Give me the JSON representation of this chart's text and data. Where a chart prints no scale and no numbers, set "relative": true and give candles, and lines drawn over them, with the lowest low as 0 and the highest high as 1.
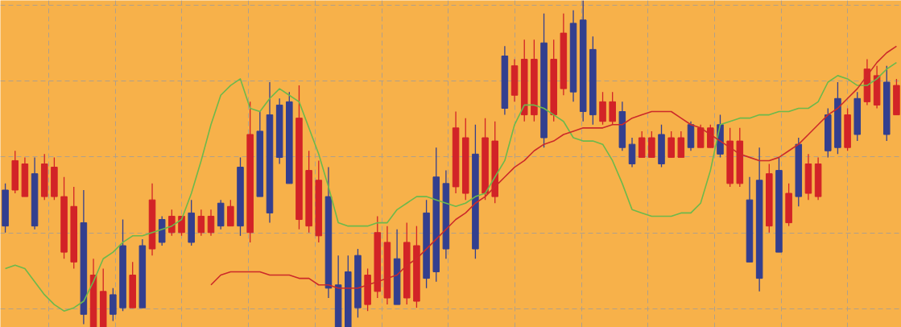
{
  "chart_data": {
    "type": "candlestick",
    "relative": true,
    "grid": true,
    "categories": [
      null,
      null,
      null,
      null,
      null,
      null,
      null,
      null,
      null,
      null,
      null,
      null,
      null,
      null,
      null,
      null,
      null,
      null,
      null,
      null,
      null,
      null,
      null,
      null,
      null,
      null,
      null,
      null,
      null,
      null,
      null,
      null,
      null,
      null,
      null,
      null,
      null,
      null,
      null,
      null,
      null,
      null,
      null,
      null,
      null,
      null,
      null,
      null,
      null,
      null,
      null,
      null,
      null,
      null,
      null,
      null,
      null,
      null,
      null,
      null,
      null,
      null,
      null,
      null,
      null,
      null,
      null,
      null,
      null,
      null,
      null,
      null,
      null,
      null,
      null,
      null,
      null,
      null,
      null,
      null,
      null,
      null,
      null,
      null,
      null,
      null,
      null,
      null,
      null,
      null,
      null,
      null
    ],
    "ohlc": [
      [
        0.31,
        0.44,
        0.29,
        0.42
      ],
      [
        0.51,
        0.54,
        0.41,
        0.42
      ],
      [
        0.5,
        0.52,
        0.4,
        0.4
      ],
      [
        0.31,
        0.52,
        0.3,
        0.47
      ],
      [
        0.5,
        0.53,
        0.39,
        0.4
      ],
      [
        0.49,
        0.52,
        0.39,
        0.4
      ],
      [
        0.4,
        0.46,
        0.21,
        0.23
      ],
      [
        0.37,
        0.43,
        0.18,
        0.2
      ],
      [
        0.04,
        0.42,
        0.01,
        0.32
      ],
      [
        0.16,
        0.21,
        0,
        0
      ],
      [
        0.11,
        0.18,
        0,
        0
      ],
      [
        0.04,
        0.12,
        0.02,
        0.1
      ],
      [
        0.06,
        0.33,
        0.05,
        0.25
      ],
      [
        0.16,
        0.2,
        0.06,
        0.06
      ],
      [
        0.06,
        0.27,
        0.06,
        0.25
      ],
      [
        0.39,
        0.44,
        0.22,
        0.24
      ],
      [
        0.26,
        0.34,
        0.25,
        0.33
      ],
      [
        0.34,
        0.36,
        0.28,
        0.29
      ],
      [
        0.34,
        0.34,
        0.28,
        0.29
      ],
      [
        0.26,
        0.39,
        0.25,
        0.35
      ],
      [
        0.34,
        0.36,
        0.28,
        0.29
      ],
      [
        0.34,
        0.36,
        0.28,
        0.29
      ],
      [
        0.31,
        0.39,
        0.3,
        0.38
      ],
      [
        0.37,
        0.39,
        0.31,
        0.31
      ],
      [
        0.31,
        0.52,
        0.28,
        0.49
      ],
      [
        0.59,
        0.69,
        0.26,
        0.29
      ],
      [
        0.4,
        0.66,
        0.4,
        0.6
      ],
      [
        0.35,
        0.75,
        0.32,
        0.65
      ],
      [
        0.52,
        0.7,
        0.5,
        0.68
      ],
      [
        0.44,
        0.72,
        0.44,
        0.69
      ],
      [
        0.64,
        0.74,
        0.3,
        0.33
      ],
      [
        0.48,
        0.54,
        0.29,
        0.31
      ],
      [
        0.45,
        0.51,
        0.26,
        0.28
      ],
      [
        0.12,
        0.49,
        0.09,
        0.4
      ],
      [
        0,
        0.22,
        0,
        0.13
      ],
      [
        0,
        0.22,
        0,
        0.17
      ],
      [
        0.06,
        0.24,
        0.03,
        0.22
      ],
      [
        0.16,
        0.18,
        0.05,
        0.07
      ],
      [
        0.29,
        0.34,
        0.09,
        0.11
      ],
      [
        0.26,
        0.31,
        0.07,
        0.09
      ],
      [
        0.07,
        0.3,
        0.07,
        0.21
      ],
      [
        0.26,
        0.32,
        0.07,
        0.09
      ],
      [
        0.25,
        0.31,
        0.06,
        0.08
      ],
      [
        0.15,
        0.39,
        0.12,
        0.35
      ],
      [
        0.17,
        0.55,
        0.14,
        0.46
      ],
      [
        0.24,
        0.48,
        0.21,
        0.44
      ],
      [
        0.61,
        0.66,
        0.41,
        0.43
      ],
      [
        0.58,
        0.64,
        0.39,
        0.41
      ],
      [
        0.24,
        0.62,
        0.21,
        0.53
      ],
      [
        0.58,
        0.64,
        0.39,
        0.41
      ],
      [
        0.57,
        0.63,
        0.38,
        0.4
      ],
      [
        0.67,
        0.86,
        0.65,
        0.83
      ],
      [
        0.8,
        0.82,
        0.69,
        0.71
      ],
      [
        0.82,
        0.88,
        0.63,
        0.65
      ],
      [
        0.82,
        0.88,
        0.63,
        0.65
      ],
      [
        0.58,
        0.96,
        0.55,
        0.87
      ],
      [
        0.82,
        0.88,
        0.63,
        0.65
      ],
      [
        0.9,
        0.96,
        0.71,
        0.73
      ],
      [
        0.72,
        0.97,
        0.69,
        0.93
      ],
      [
        0.66,
        1.0,
        0.63,
        0.94
      ],
      [
        0.65,
        0.89,
        0.62,
        0.85
      ],
      [
        0.69,
        0.72,
        0.62,
        0.63
      ],
      [
        0.69,
        0.72,
        0.62,
        0.63
      ],
      [
        0.55,
        0.69,
        0.54,
        0.66
      ],
      [
        0.5,
        0.58,
        0.49,
        0.56
      ],
      [
        0.58,
        0.6,
        0.52,
        0.52
      ],
      [
        0.58,
        0.6,
        0.52,
        0.52
      ],
      [
        0.5,
        0.62,
        0.49,
        0.59
      ],
      [
        0.58,
        0.6,
        0.52,
        0.52
      ],
      [
        0.58,
        0.6,
        0.52,
        0.52
      ],
      [
        0.55,
        0.63,
        0.54,
        0.62
      ],
      [
        0.61,
        0.62,
        0.55,
        0.55
      ],
      [
        0.61,
        0.62,
        0.55,
        0.55
      ],
      [
        0.53,
        0.65,
        0.52,
        0.62
      ],
      [
        0.57,
        0.61,
        0.43,
        0.44
      ],
      [
        0.57,
        0.61,
        0.43,
        0.44
      ],
      [
        0.2,
        0.46,
        0.2,
        0.39
      ],
      [
        0.15,
        0.55,
        0.11,
        0.45
      ],
      [
        0.47,
        0.5,
        0.29,
        0.31
      ],
      [
        0.23,
        0.52,
        0.23,
        0.48
      ],
      [
        0.41,
        0.44,
        0.31,
        0.32
      ],
      [
        0.4,
        0.58,
        0.37,
        0.56
      ],
      [
        0.5,
        0.53,
        0.39,
        0.41
      ],
      [
        0.5,
        0.52,
        0.39,
        0.4
      ],
      [
        0.54,
        0.67,
        0.52,
        0.65
      ],
      [
        0.55,
        0.75,
        0.53,
        0.7
      ],
      [
        0.65,
        0.67,
        0.54,
        0.55
      ],
      [
        0.59,
        0.72,
        0.57,
        0.7
      ],
      [
        0.79,
        0.82,
        0.68,
        0.69
      ],
      [
        0.77,
        0.8,
        0.67,
        0.68
      ],
      [
        0.59,
        0.8,
        0.57,
        0.75
      ],
      [
        0.74,
        0.76,
        0.65,
        0.65
      ]
    ],
    "colors": [
      "#333f8f",
      "#d22327",
      "#d22327",
      "#333f8f",
      "#d22327",
      "#d22327",
      "#d22327",
      "#d22327",
      "#333f8f",
      "#d22327",
      "#d22327",
      "#333f8f",
      "#333f8f",
      "#d22327",
      "#333f8f",
      "#d22327",
      "#333f8f",
      "#d22327",
      "#d22327",
      "#333f8f",
      "#d22327",
      "#d22327",
      "#333f8f",
      "#d22327",
      "#333f8f",
      "#d22327",
      "#333f8f",
      "#333f8f",
      "#333f8f",
      "#333f8f",
      "#d22327",
      "#d22327",
      "#d22327",
      "#333f8f",
      "#333f8f",
      "#333f8f",
      "#333f8f",
      "#d22327",
      "#d22327",
      "#d22327",
      "#333f8f",
      "#d22327",
      "#d22327",
      "#333f8f",
      "#333f8f",
      "#333f8f",
      "#d22327",
      "#d22327",
      "#333f8f",
      "#d22327",
      "#d22327",
      "#333f8f",
      "#d22327",
      "#d22327",
      "#d22327",
      "#333f8f",
      "#d22327",
      "#d22327",
      "#333f8f",
      "#333f8f",
      "#333f8f",
      "#d22327",
      "#d22327",
      "#333f8f",
      "#333f8f",
      "#d22327",
      "#d22327",
      "#333f8f",
      "#d22327",
      "#d22327",
      "#333f8f",
      "#d22327",
      "#d22327",
      "#333f8f",
      "#d22327",
      "#d22327",
      "#333f8f",
      "#333f8f",
      "#d22327",
      "#333f8f",
      "#d22327",
      "#333f8f",
      "#d22327",
      "#d22327",
      "#333f8f",
      "#333f8f",
      "#d22327",
      "#333f8f",
      "#d22327",
      "#d22327",
      "#333f8f",
      "#d22327"
    ],
    "series": [
      {
        "type": "line",
        "color": "#6cb94c",
        "values": [
          0.18,
          0.19,
          0.18,
          0.14,
          0.1,
          0.07,
          0.05,
          0.06,
          0.08,
          0.14,
          0.21,
          0.23,
          0.26,
          0.28,
          0.28,
          0.29,
          0.3,
          0.31,
          0.33,
          0.41,
          0.51,
          0.62,
          0.71,
          0.74,
          0.76,
          0.67,
          0.66,
          0.7,
          0.73,
          0.71,
          0.69,
          0.61,
          0.53,
          0.43,
          0.32,
          0.31,
          0.31,
          0.31,
          0.32,
          0.32,
          0.36,
          0.38,
          0.4,
          0.4,
          0.39,
          0.38,
          0.37,
          0.38,
          0.4,
          0.41,
          0.46,
          0.51,
          0.62,
          0.68,
          0.68,
          0.67,
          0.65,
          0.63,
          0.58,
          0.57,
          0.57,
          0.56,
          0.51,
          0.44,
          0.36,
          0.35,
          0.34,
          0.34,
          0.34,
          0.35,
          0.35,
          0.38,
          0.48,
          0.62,
          0.63,
          0.64,
          0.64,
          0.65,
          0.65,
          0.66,
          0.66,
          0.67,
          0.67,
          0.69,
          0.75,
          0.77,
          0.76,
          0.74,
          0.74,
          0.76,
          0.79,
          0.81
        ]
      },
      {
        "type": "line",
        "color": "#cc2a2a",
        "values": [
          null,
          null,
          null,
          null,
          null,
          null,
          null,
          null,
          null,
          null,
          null,
          null,
          null,
          null,
          null,
          null,
          null,
          null,
          null,
          null,
          null,
          0.13,
          0.16,
          0.17,
          0.17,
          0.17,
          0.17,
          0.16,
          0.16,
          0.16,
          0.15,
          0.15,
          0.13,
          0.13,
          0.12,
          0.12,
          0.12,
          0.13,
          0.14,
          0.15,
          0.16,
          0.19,
          0.21,
          0.24,
          0.27,
          0.3,
          0.33,
          0.35,
          0.38,
          0.4,
          0.43,
          0.46,
          0.49,
          0.51,
          0.54,
          0.56,
          0.57,
          0.59,
          0.6,
          0.61,
          0.61,
          0.61,
          0.62,
          0.62,
          0.64,
          0.65,
          0.66,
          0.66,
          0.66,
          0.64,
          0.62,
          0.61,
          0.59,
          0.57,
          0.55,
          0.53,
          0.52,
          0.51,
          0.51,
          0.52,
          0.54,
          0.56,
          0.59,
          0.62,
          0.65,
          0.67,
          0.7,
          0.73,
          0.77,
          0.81,
          0.84,
          0.86
        ]
      }
    ]
  }
}
